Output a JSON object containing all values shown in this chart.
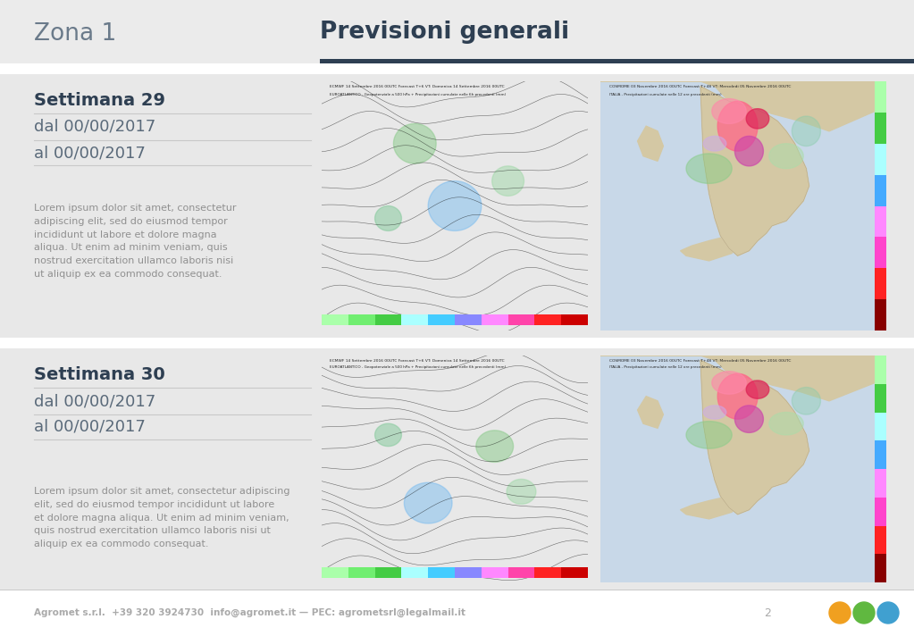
{
  "bg_color": "#ebebeb",
  "section_bg": "#e8e8e8",
  "white_bg": "#ffffff",
  "dark_line_color": "#2e3f52",
  "separator_color": "#c8c8c8",
  "title_left": "Zona 1",
  "title_right": "Previsioni generali",
  "title_left_color": "#6a7a8a",
  "title_right_color": "#2e3f52",
  "week1_title": "Settimana 29",
  "week1_date1": "dal 00/00/2017",
  "week1_date2": "al 00/00/2017",
  "week1_text": "Lorem ipsum dolor sit amet, consectetur\nadipiscing elit, sed do eiusmod tempor\nincididunt ut labore et dolore magna\naliqua. Ut enim ad minim veniam, quis\nnostrud exercitation ullamco laboris nisi\nut aliquip ex ea commodo consequat.",
  "week2_title": "Settimana 30",
  "week2_date1": "dal 00/00/2017",
  "week2_date2": "al 00/00/2017",
  "week2_text": "Lorem ipsum dolor sit amet, consectetur adipiscing\nelit, sed do eiusmod tempor incididunt ut labore\net dolore magna aliqua. Ut enim ad minim veniam,\nquis nostrud exercitation ullamco laboris nisi ut\naliquip ex ea commodo consequat.",
  "footer_text": "Agromet s.r.l.  +39 320 3924730  info@agromet.it — PEC: agrometsrl@legalmail.it",
  "footer_page": "2",
  "week_title_color": "#2e3f52",
  "date_color": "#5a6a7a",
  "text_color": "#909090",
  "footer_color": "#aaaaaa",
  "icon_colors": [
    "#f0a020",
    "#60b840",
    "#40a0d0"
  ]
}
